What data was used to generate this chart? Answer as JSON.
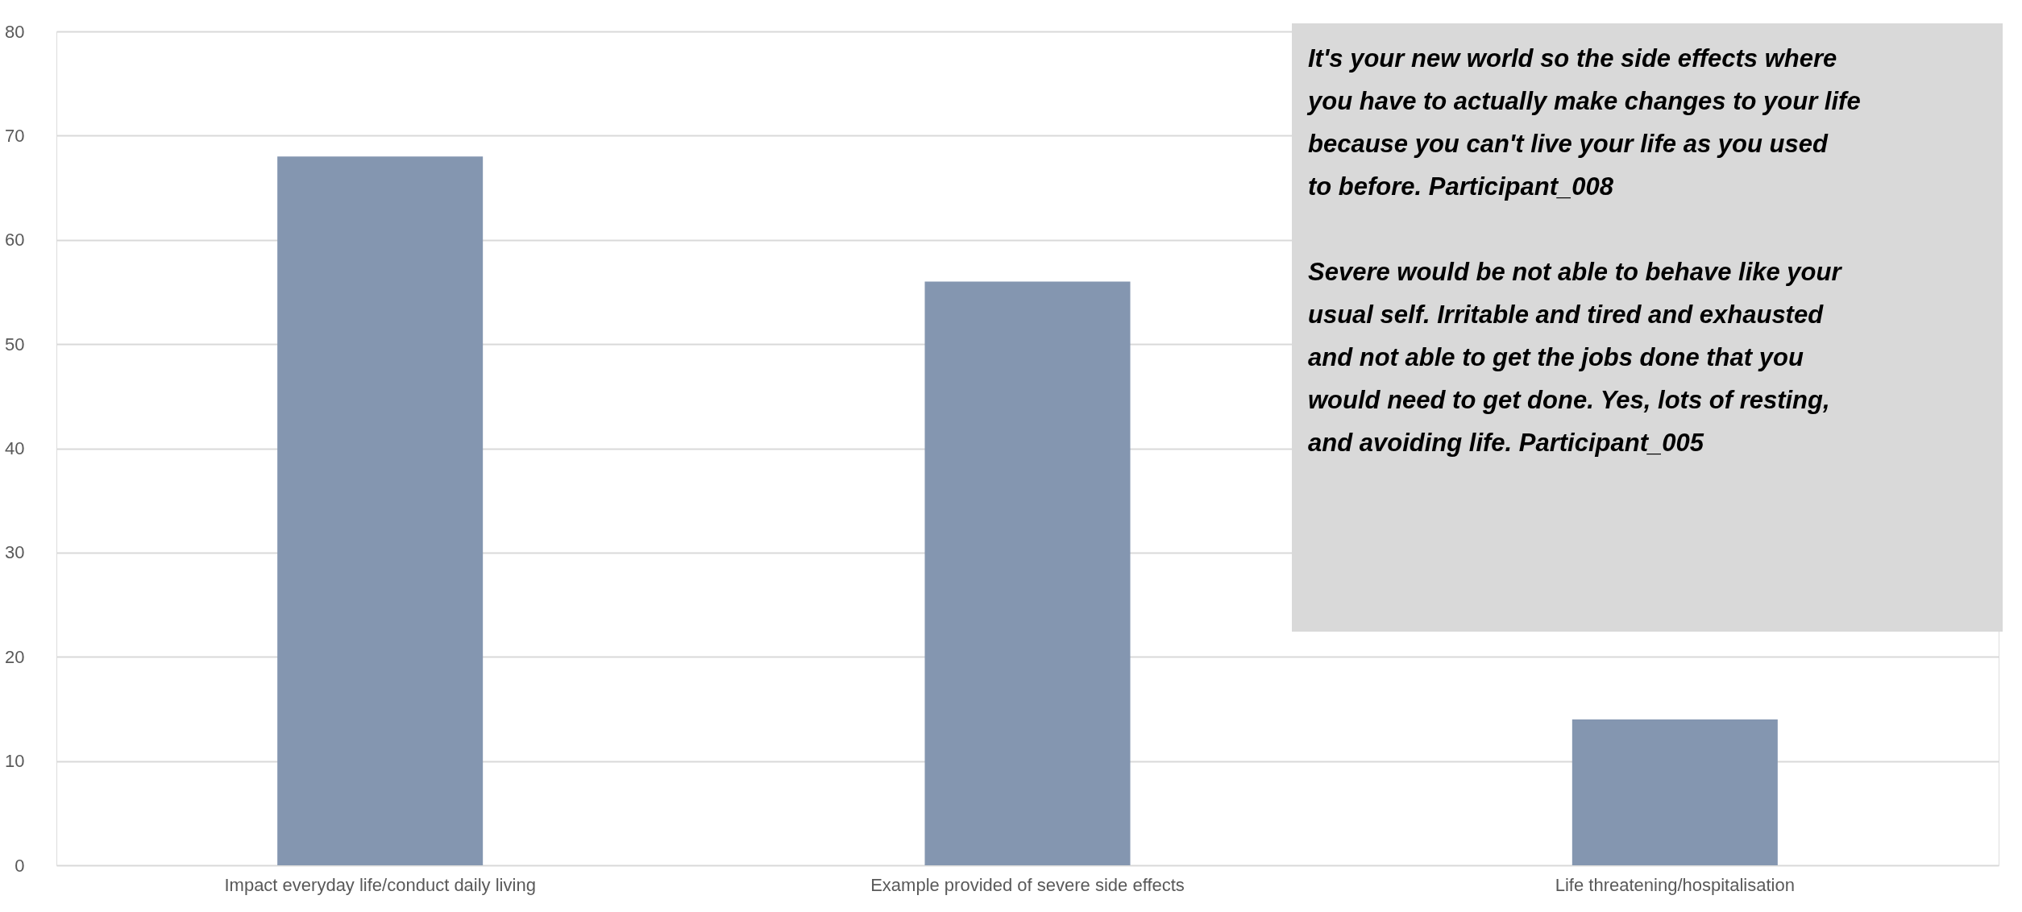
{
  "chart_data": {
    "type": "bar",
    "categories": [
      "Impact everyday life/conduct daily living",
      "Example provided of severe side effects",
      "Life threatening/hospitalisation"
    ],
    "values": [
      68,
      56,
      14
    ],
    "color": "#8496b0",
    "ylim": [
      0,
      80
    ],
    "yticks": [
      0,
      10,
      20,
      30,
      40,
      50,
      60,
      70,
      80
    ],
    "grid": "y",
    "annotations": [
      "It's your new world so the side effects where you have to actually make changes to your life because you can't live your life as you used to before. Participant_008",
      "Severe would be not able to behave like your usual self. Irritable and tired and exhausted and not able to get the jobs done that you would need to get done. Yes, lots of resting, and avoiding life. Participant_005"
    ]
  }
}
